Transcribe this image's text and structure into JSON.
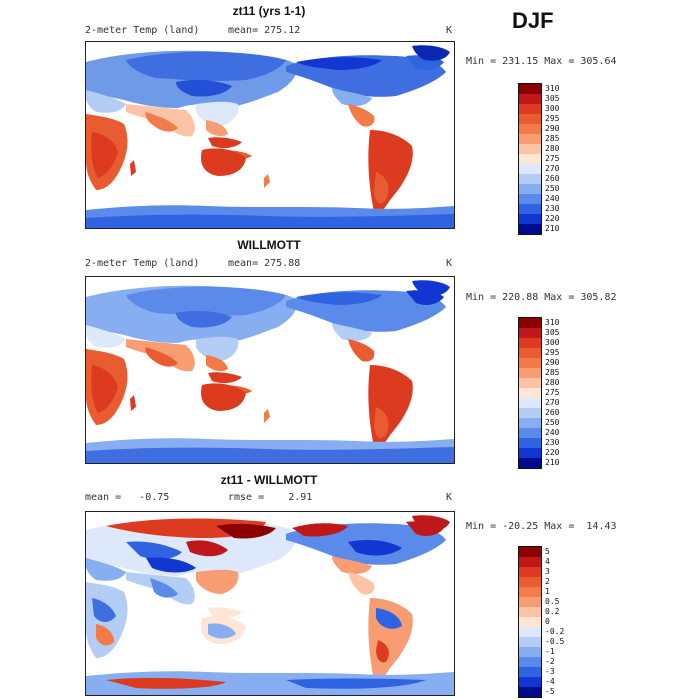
{
  "season": "DJF",
  "panels": [
    {
      "title": "zt11 (yrs 1-1)",
      "left_label": "2-meter Temp (land)",
      "mid_label": "mean= 275.12",
      "right_label": "K",
      "minmax": "Min = 231.15 Max = 305.64",
      "colorbar": {
        "labels": [
          "310",
          "305",
          "300",
          "295",
          "290",
          "285",
          "280",
          "275",
          "270",
          "260",
          "250",
          "240",
          "230",
          "220",
          "210"
        ],
        "colors": [
          "#8b0000",
          "#c0181a",
          "#dc3b20",
          "#e95b30",
          "#f27b4a",
          "#f89c72",
          "#fcc4a4",
          "#fee6d6",
          "#dde9fb",
          "#b4cdf4",
          "#86aef0",
          "#5a8bea",
          "#2f63e2",
          "#1236d2",
          "#000c8c"
        ]
      }
    },
    {
      "title": "WILLMOTT",
      "left_label": "2-meter Temp (land)",
      "mid_label": "mean= 275.88",
      "right_label": "K",
      "minmax": "Min = 220.88 Max = 305.82",
      "colorbar": {
        "labels": [
          "310",
          "305",
          "300",
          "295",
          "290",
          "285",
          "280",
          "275",
          "270",
          "260",
          "250",
          "240",
          "230",
          "220",
          "210"
        ],
        "colors": [
          "#8b0000",
          "#c0181a",
          "#dc3b20",
          "#e95b30",
          "#f27b4a",
          "#f89c72",
          "#fcc4a4",
          "#fee6d6",
          "#dde9fb",
          "#b4cdf4",
          "#86aef0",
          "#5a8bea",
          "#2f63e2",
          "#1236d2",
          "#000c8c"
        ]
      }
    },
    {
      "title": "zt11 - WILLMOTT",
      "left_label": "mean =   -0.75",
      "mid_label": "rmse =    2.91",
      "right_label": "K",
      "minmax": "Min = -20.25 Max =  14.43",
      "colorbar": {
        "labels": [
          "5",
          "4",
          "3",
          "2",
          "1",
          "0.5",
          "0.2",
          "0",
          "-0.2",
          "-0.5",
          "-1",
          "-2",
          "-3",
          "-4",
          "-5"
        ],
        "colors": [
          "#8b0000",
          "#c0181a",
          "#dc3b20",
          "#e95b30",
          "#f27b4a",
          "#f89c72",
          "#fcc4a4",
          "#fee6d6",
          "#dde9fb",
          "#b4cdf4",
          "#86aef0",
          "#5a8bea",
          "#2f63e2",
          "#1236d2",
          "#000c8c"
        ]
      }
    }
  ]
}
